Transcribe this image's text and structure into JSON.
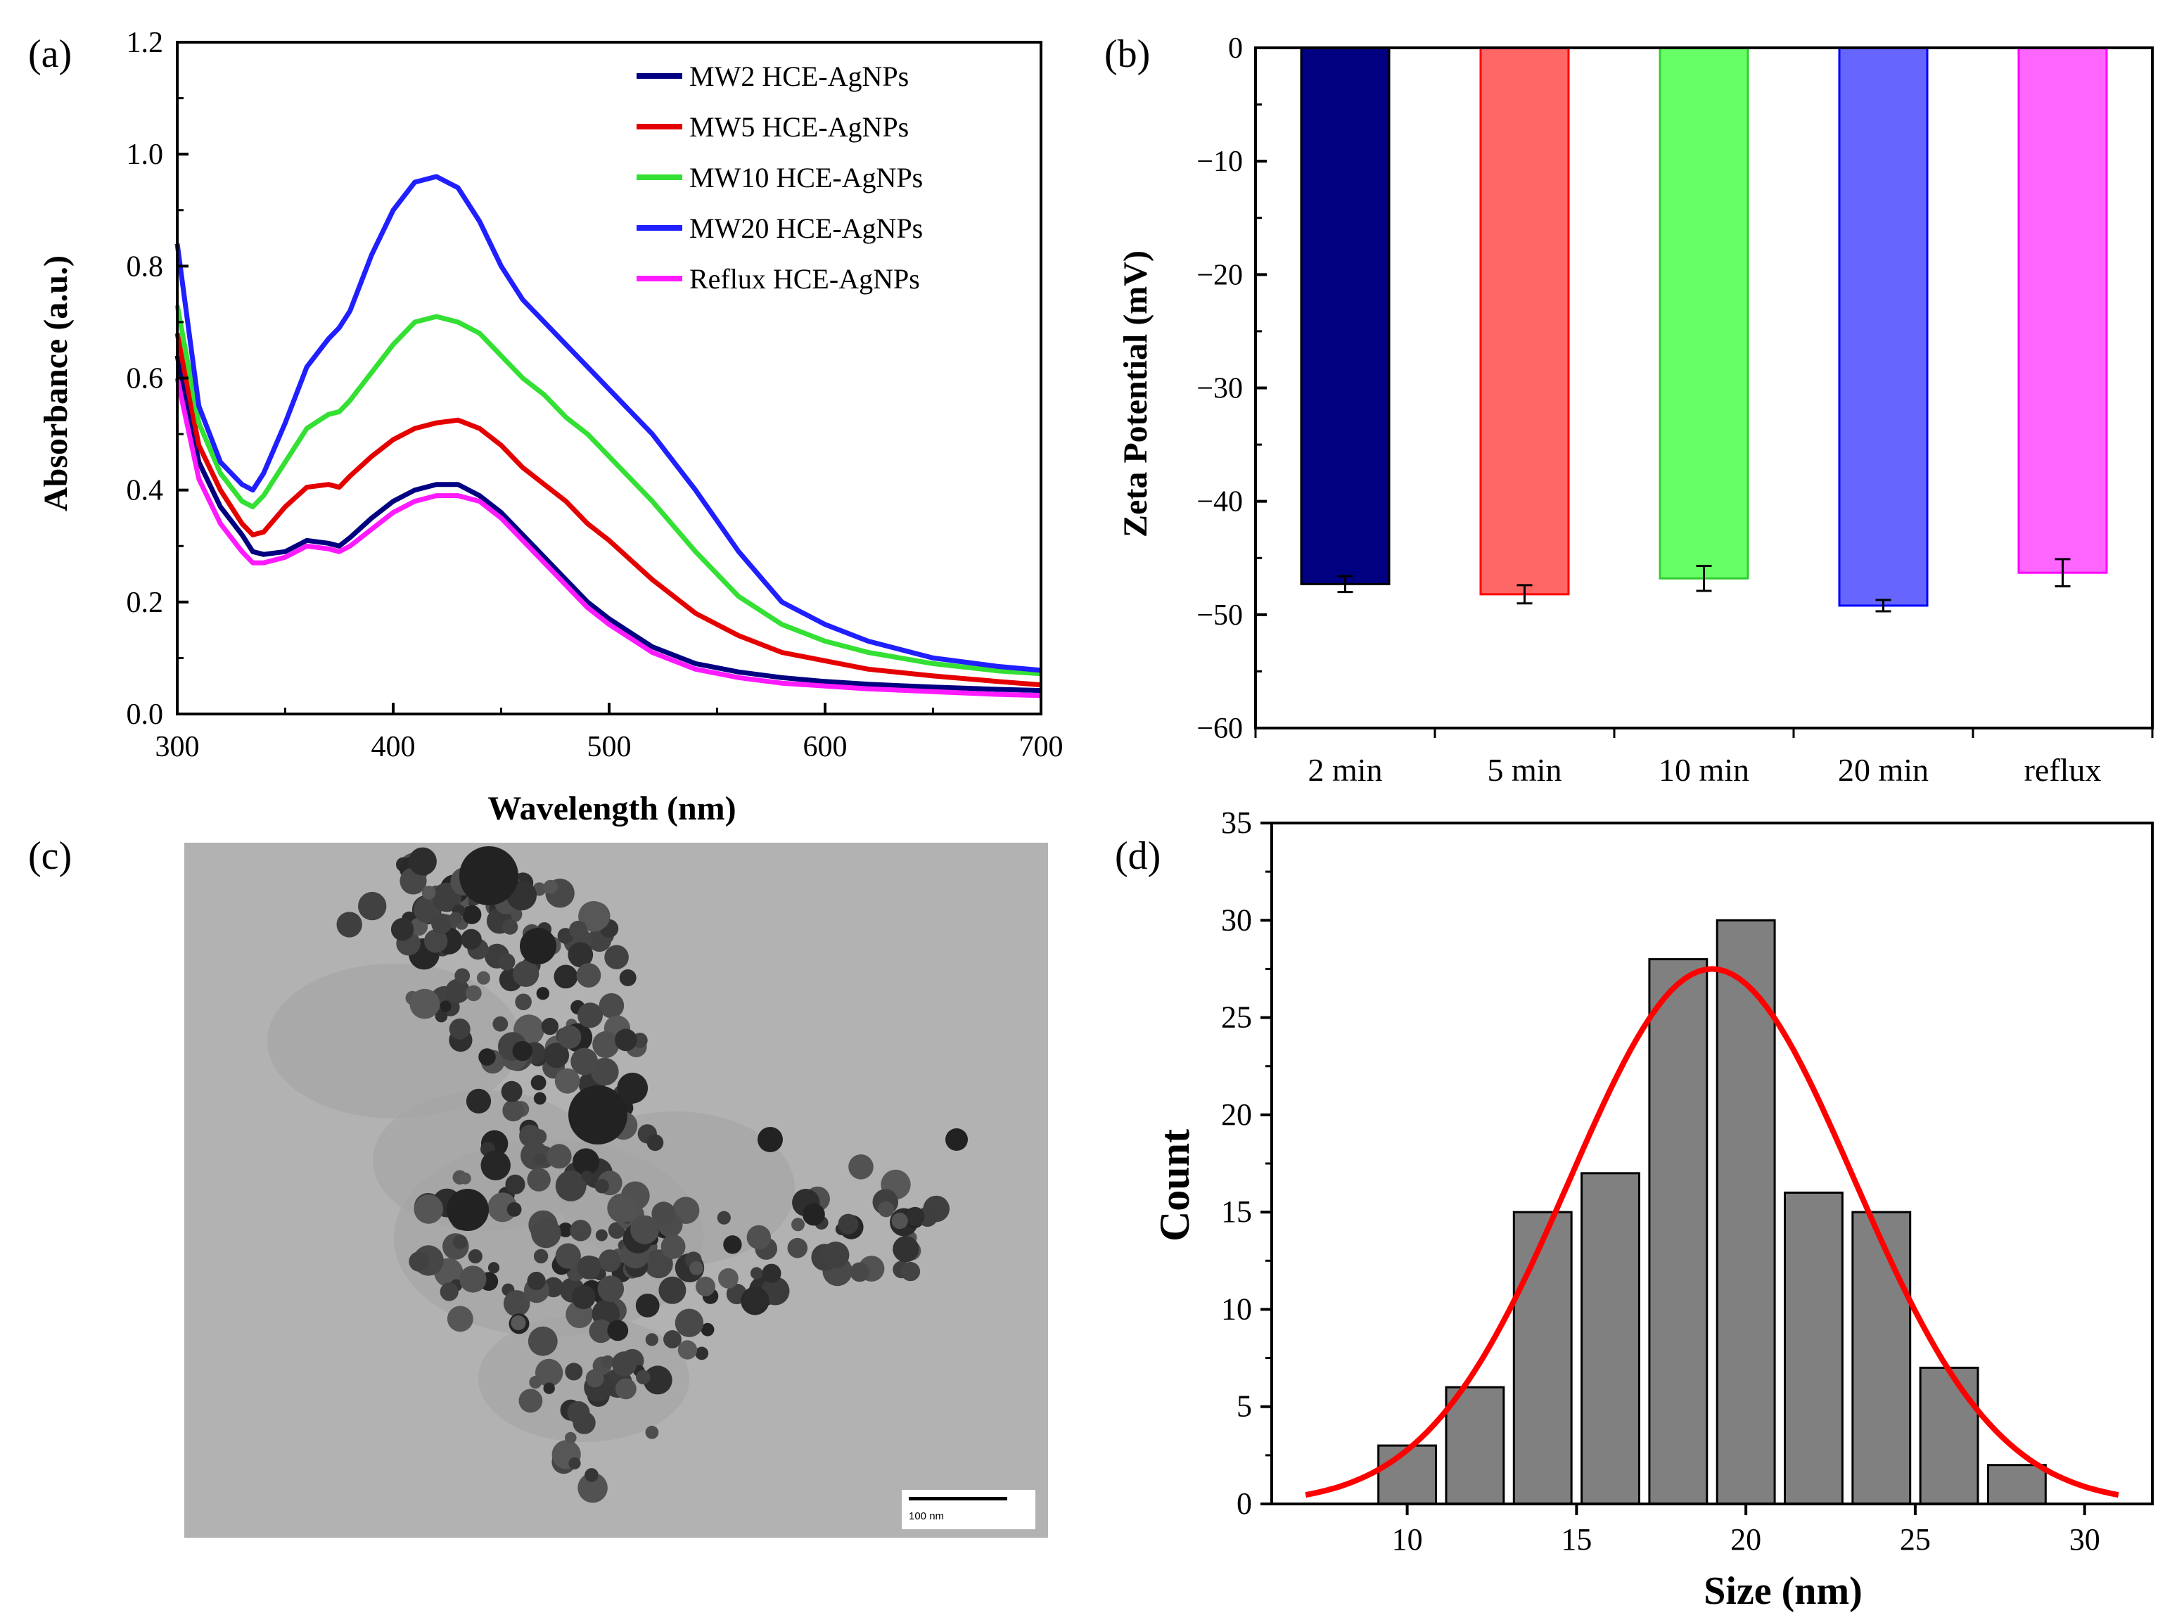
{
  "panels": {
    "a": "(a)",
    "b": "(b)",
    "c": "(c)",
    "d": "(d)"
  },
  "chart_data": [
    {
      "id": "a",
      "type": "line",
      "title": "",
      "xlabel": "Wavelength (nm)",
      "ylabel": "Absorbance (a.u.)",
      "xlim": [
        300,
        700
      ],
      "ylim": [
        0.0,
        1.2
      ],
      "xticks": [
        "300",
        "400",
        "500",
        "600",
        "700"
      ],
      "yticks": [
        "0.0",
        "0.2",
        "0.4",
        "0.6",
        "0.8",
        "1.0",
        "1.2"
      ],
      "legend_position": "top-right",
      "x": [
        300,
        310,
        320,
        330,
        335,
        340,
        350,
        360,
        370,
        375,
        380,
        390,
        400,
        410,
        420,
        430,
        440,
        450,
        460,
        470,
        480,
        490,
        500,
        520,
        540,
        560,
        580,
        600,
        620,
        650,
        680,
        700
      ],
      "series": [
        {
          "name": "MW2 HCE-AgNPs",
          "color": "#000080",
          "values": [
            0.64,
            0.45,
            0.37,
            0.32,
            0.29,
            0.285,
            0.29,
            0.31,
            0.305,
            0.3,
            0.315,
            0.35,
            0.38,
            0.4,
            0.41,
            0.41,
            0.39,
            0.36,
            0.32,
            0.28,
            0.24,
            0.2,
            0.17,
            0.12,
            0.09,
            0.075,
            0.065,
            0.058,
            0.053,
            0.048,
            0.044,
            0.042
          ]
        },
        {
          "name": "MW5 HCE-AgNPs",
          "color": "#e50000",
          "values": [
            0.68,
            0.48,
            0.4,
            0.34,
            0.32,
            0.325,
            0.37,
            0.405,
            0.41,
            0.405,
            0.425,
            0.46,
            0.49,
            0.51,
            0.52,
            0.525,
            0.51,
            0.48,
            0.44,
            0.41,
            0.38,
            0.34,
            0.31,
            0.24,
            0.18,
            0.14,
            0.11,
            0.095,
            0.08,
            0.068,
            0.058,
            0.052
          ]
        },
        {
          "name": "MW10 HCE-AgNPs",
          "color": "#33e033",
          "values": [
            0.73,
            0.52,
            0.43,
            0.38,
            0.37,
            0.39,
            0.45,
            0.51,
            0.535,
            0.54,
            0.56,
            0.61,
            0.66,
            0.7,
            0.71,
            0.7,
            0.68,
            0.64,
            0.6,
            0.57,
            0.53,
            0.5,
            0.46,
            0.38,
            0.29,
            0.21,
            0.16,
            0.13,
            0.11,
            0.09,
            0.077,
            0.072
          ]
        },
        {
          "name": "MW20 HCE-AgNPs",
          "color": "#1f1fff",
          "values": [
            0.84,
            0.55,
            0.45,
            0.41,
            0.4,
            0.43,
            0.52,
            0.62,
            0.67,
            0.69,
            0.72,
            0.82,
            0.9,
            0.95,
            0.96,
            0.94,
            0.88,
            0.8,
            0.74,
            0.7,
            0.66,
            0.62,
            0.58,
            0.5,
            0.4,
            0.29,
            0.2,
            0.16,
            0.13,
            0.1,
            0.085,
            0.078
          ]
        },
        {
          "name": "Reflux HCE-AgNPs",
          "color": "#ff1aff",
          "values": [
            0.6,
            0.42,
            0.34,
            0.29,
            0.27,
            0.27,
            0.28,
            0.3,
            0.295,
            0.29,
            0.3,
            0.33,
            0.36,
            0.38,
            0.39,
            0.39,
            0.38,
            0.35,
            0.31,
            0.27,
            0.23,
            0.19,
            0.16,
            0.11,
            0.08,
            0.065,
            0.055,
            0.05,
            0.045,
            0.04,
            0.035,
            0.033
          ]
        }
      ]
    },
    {
      "id": "b",
      "type": "bar",
      "title": "",
      "xlabel": "",
      "ylabel": "Zeta Potential (mV)",
      "ylim": [
        -60,
        0
      ],
      "yticks": [
        "0",
        "−10",
        "−20",
        "−30",
        "−40",
        "−50",
        "−60"
      ],
      "categories": [
        "2 min",
        "5 min",
        "10 min",
        "20 min",
        "reflux"
      ],
      "values": [
        -47.3,
        -48.2,
        -46.8,
        -49.2,
        -46.3
      ],
      "errors": [
        0.7,
        0.8,
        1.1,
        0.5,
        1.2
      ],
      "fill_colors": [
        "#000080",
        "#ff6666",
        "#66ff66",
        "#6666ff",
        "#ff66ff"
      ],
      "edge_colors": [
        "#000000",
        "#ff0000",
        "#33cc33",
        "#0000ff",
        "#ff00ff"
      ]
    },
    {
      "id": "d",
      "type": "bar",
      "title": "",
      "xlabel": "Size (nm)",
      "ylabel": "Count",
      "xlim": [
        6,
        32
      ],
      "ylim": [
        0,
        35
      ],
      "xticks": [
        "10",
        "15",
        "20",
        "25",
        "30"
      ],
      "yticks": [
        "0",
        "5",
        "10",
        "15",
        "20",
        "25",
        "30",
        "35"
      ],
      "bin_centers": [
        10,
        12,
        14,
        16,
        18,
        20,
        22,
        24,
        26,
        28
      ],
      "values": [
        3,
        6,
        15,
        17,
        28,
        30,
        16,
        15,
        7,
        2
      ],
      "bar_color": "#808080",
      "fit": {
        "type": "gaussian",
        "center": 19.0,
        "sigma": 4.2,
        "peak": 27.5,
        "color": "#ff0000"
      }
    }
  ],
  "tem_image": {
    "scale_bar_label": "100 nm"
  }
}
